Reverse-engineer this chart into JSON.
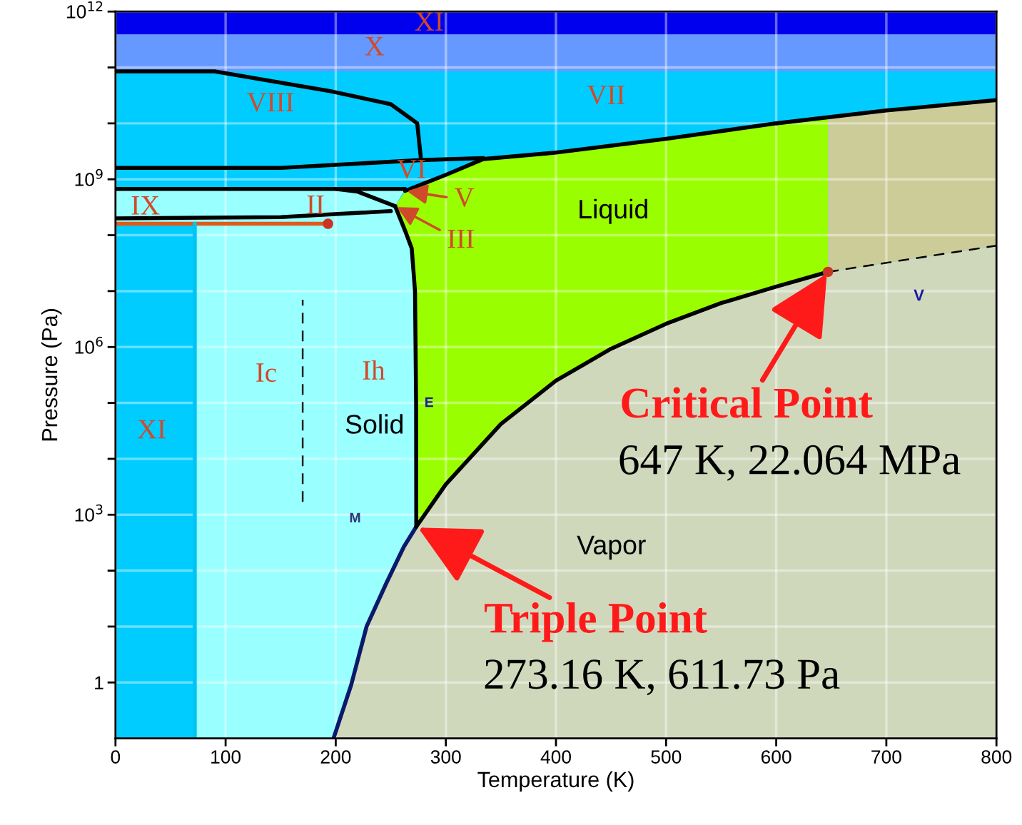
{
  "chart_data": {
    "type": "line",
    "xlabel": "Temperature (K)",
    "ylabel": "Pressure (Pa)",
    "log": "y",
    "xlim": [
      0,
      800
    ],
    "ylim": [
      0.1,
      1000000000000
    ],
    "xticks": [
      0,
      100,
      200,
      300,
      400,
      500,
      600,
      700,
      800
    ],
    "yticks": [
      1,
      {
        "value": 10,
        "label": null
      },
      {
        "value": 100,
        "label": null
      },
      {
        "value": 1000,
        "label": "10$^{3}$"
      },
      {
        "value": 10000,
        "label": null
      },
      {
        "value": 100000,
        "label": null
      },
      {
        "value": 1000000,
        "label": "10$^{6}$"
      },
      {
        "value": 10000000,
        "label": null
      },
      {
        "value": 100000000,
        "label": null
      },
      {
        "value": 1000000000,
        "label": "10$^{9}$"
      },
      {
        "value": 10000000000,
        "label": null
      },
      {
        "value": 100000000000,
        "label": null
      },
      {
        "value": 1000000000000,
        "label": "10$^{12}$"
      }
    ],
    "grid": true,
    "bands": [
      {
        "axis": "y",
        "from": 0.1,
        "to": 85000000000,
        "color": "#00ccff"
      },
      {
        "axis": "y",
        "from": 85000000000,
        "to": 390000000000,
        "color": "#6699ff"
      },
      {
        "axis": "y",
        "from": 390000000000,
        "to": 1000000000000,
        "color": "#0000ee"
      }
    ],
    "series": [
      {
        "color": "#000000",
        "x": [
          0,
          90,
          197,
          250,
          274,
          277.5
        ],
        "values": [
          85000000000,
          85000000000,
          37000000000,
          22000000000,
          10000000000,
          2200000000
        ]
      },
      {
        "color": "#000000",
        "x": [
          0,
          150,
          277,
          334
        ],
        "values": [
          1600000000,
          1600000000,
          2200000000,
          2400000000
        ]
      },
      {
        "color": "#000000",
        "x": [
          0,
          200,
          263
        ],
        "values": [
          670000000,
          670000000,
          670000000
        ]
      },
      {
        "color": "#000000",
        "x": [
          263,
          300,
          334,
          400,
          500,
          600,
          700,
          800
        ],
        "values": [
          620000000,
          1200000000,
          2300000000,
          3000000000,
          5300000000,
          10000000000,
          17000000000,
          26000000000
        ]
      },
      {
        "color": "#000000",
        "x": [
          200,
          220,
          254
        ],
        "values": [
          670000000,
          600000000,
          330000000
        ]
      },
      {
        "color": "#000000",
        "x": [
          0,
          150,
          250
        ],
        "values": [
          200000000,
          210000000,
          270000000
        ]
      },
      {
        "color": "#000000",
        "x": [
          254,
          263,
          269,
          272,
          273,
          273.16
        ],
        "values": [
          330000000,
          120000000,
          58000000,
          10000000,
          100000,
          611.73
        ]
      },
      {
        "color": "#e05a1a",
        "x": [
          0,
          193
        ],
        "values": [
          160000000,
          160000000
        ]
      },
      {
        "color": "#0a1a6a",
        "x": [
          198,
          214,
          228,
          246,
          262,
          273.16
        ],
        "values": [
          0.1,
          0.9,
          10,
          60,
          270,
          611.73
        ]
      },
      {
        "color": "#000000",
        "x": [
          273.16,
          300,
          350,
          400,
          450,
          500,
          550,
          600,
          647
        ],
        "values": [
          611.73,
          3500,
          42000,
          250000,
          930000,
          2600000,
          6100000,
          12000000,
          22064000
        ]
      },
      {
        "color": "#000000",
        "line_style": "dashed",
        "x": [
          647,
          800
        ],
        "values": [
          22064000,
          65000000
        ]
      },
      {
        "color": "#222222",
        "line_style": "dashed",
        "x": [
          170,
          170
        ],
        "values": [
          1700,
          7000000
        ]
      },
      {
        "color": "#00c4f4",
        "x": [
          72,
          72
        ],
        "values": [
          0.1,
          160000000
        ]
      },
      {
        "type": "scatter",
        "color": "#cc3322",
        "x": [
          193,
          647
        ],
        "values": [
          160000000,
          22064000
        ]
      }
    ],
    "annotations": [
      "XI",
      "X",
      "VIII",
      "VII",
      "VI",
      {
        "text": "V",
        "x": 263,
        "y": 620000000
      },
      {
        "text": "III",
        "x": 254,
        "y": 330000000
      },
      "II",
      "IX",
      "Ic",
      "Ih",
      "Solid",
      "XI",
      "E",
      "M",
      "Liquid",
      "Vapor",
      "V",
      {
        "text": "Critical Point",
        "x": 647,
        "y": 22064000
      },
      "647 K, 22.064 MPa",
      {
        "text": "Triple Point",
        "x": 273.16,
        "y": 611.73
      },
      "273.16 K, 611.73 Pa"
    ]
  }
}
